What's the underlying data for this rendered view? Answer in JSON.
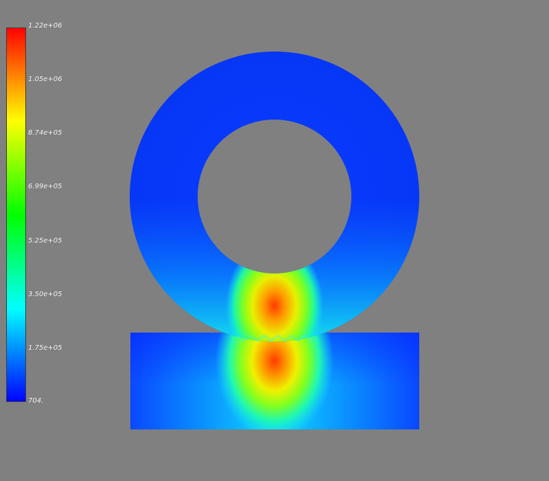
{
  "colorbar": {
    "min": 704,
    "max": 1220000,
    "labels": [
      "1.22e+06",
      "1.05e+06",
      "8.74e+05",
      "6.99e+05",
      "5.25e+05",
      "3.50e+05",
      "1.75e+05",
      "704."
    ],
    "colormap": [
      "#0000ff",
      "#00ffff",
      "#00ff00",
      "#ffff00",
      "#ff0000"
    ]
  },
  "scene": {
    "background": "#808080"
  }
}
